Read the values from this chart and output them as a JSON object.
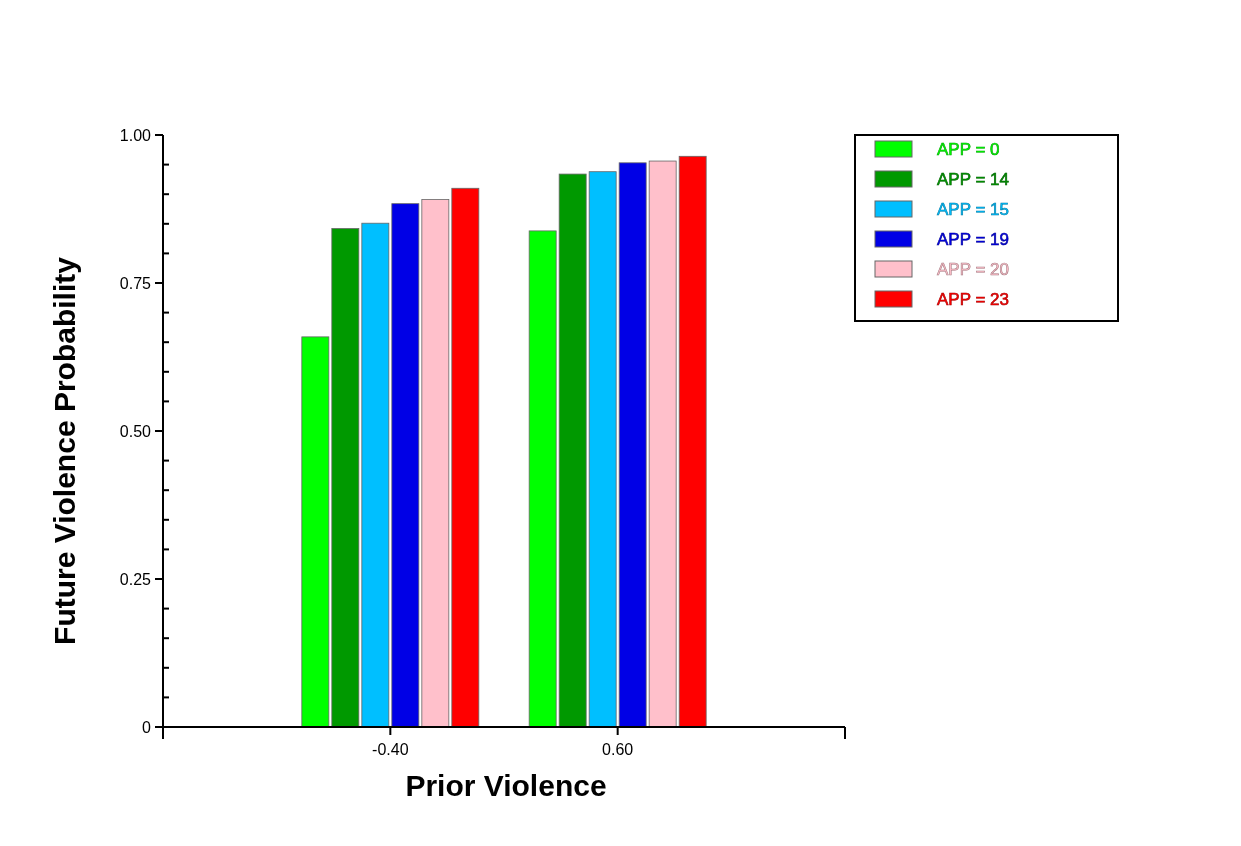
{
  "chart_data": {
    "type": "bar",
    "xlabel": "Prior Violence",
    "ylabel": "Future Violence Probability",
    "categories": [
      "-0.40",
      "0.60"
    ],
    "series": [
      {
        "name": "APP = 0",
        "color": "#00ff00",
        "values": [
          0.659,
          0.838
        ]
      },
      {
        "name": "APP = 14",
        "color": "#009900",
        "values": [
          0.842,
          0.934
        ]
      },
      {
        "name": "APP = 15",
        "color": "#00bfff",
        "values": [
          0.851,
          0.938
        ]
      },
      {
        "name": "APP = 19",
        "color": "#0000e6",
        "values": [
          0.884,
          0.953
        ]
      },
      {
        "name": "APP = 20",
        "color": "#ffc0cb",
        "values": [
          0.891,
          0.956
        ]
      },
      {
        "name": "APP = 23",
        "color": "#ff0000",
        "values": [
          0.91,
          0.964
        ]
      }
    ],
    "ylim": [
      0,
      1
    ],
    "yticks": [
      {
        "value": 0,
        "label": "0"
      },
      {
        "value": 0.05,
        "label": null
      },
      {
        "value": 0.1,
        "label": null
      },
      {
        "value": 0.15,
        "label": null
      },
      {
        "value": 0.2,
        "label": null
      },
      {
        "value": 0.25,
        "label": "0.25"
      },
      {
        "value": 0.3,
        "label": null
      },
      {
        "value": 0.35,
        "label": null
      },
      {
        "value": 0.4,
        "label": null
      },
      {
        "value": 0.45,
        "label": null
      },
      {
        "value": 0.5,
        "label": "0.50"
      },
      {
        "value": 0.55,
        "label": null
      },
      {
        "value": 0.6,
        "label": null
      },
      {
        "value": 0.65,
        "label": null
      },
      {
        "value": 0.7,
        "label": null
      },
      {
        "value": 0.75,
        "label": "0.75"
      },
      {
        "value": 0.8,
        "label": null
      },
      {
        "value": 0.85,
        "label": null
      },
      {
        "value": 0.9,
        "label": null
      },
      {
        "value": 0.95,
        "label": null
      },
      {
        "value": 1,
        "label": "1.00"
      }
    ],
    "grid": false,
    "legend": "top right"
  }
}
